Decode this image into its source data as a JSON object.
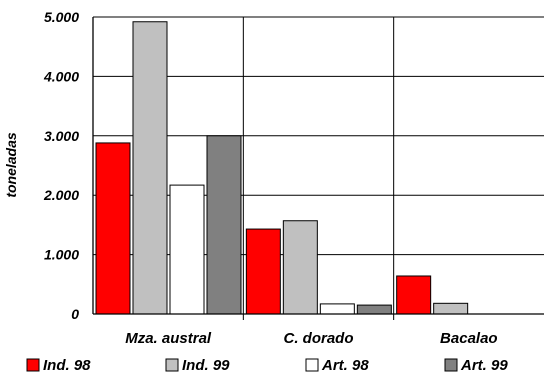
{
  "chart_data": {
    "type": "bar",
    "categories": [
      "Mza. austral",
      "C. dorado",
      "Bacalao"
    ],
    "series": [
      {
        "name": "Ind. 98",
        "color": "#ff0000",
        "values": [
          2880,
          1430,
          640
        ]
      },
      {
        "name": "Ind. 99",
        "color": "#c0c0c0",
        "values": [
          4920,
          1570,
          180
        ]
      },
      {
        "name": "Art. 98",
        "color": "#ffffff",
        "values": [
          2170,
          170,
          0
        ]
      },
      {
        "name": "Art. 99",
        "color": "#808080",
        "values": [
          3000,
          150,
          0
        ]
      }
    ],
    "ylabel": "toneladas",
    "ylim": [
      0,
      5000
    ],
    "yticks": [
      {
        "value": 0,
        "label": "0"
      },
      {
        "value": 1000,
        "label": "1.000"
      },
      {
        "value": 2000,
        "label": "2.000"
      },
      {
        "value": 3000,
        "label": "3.000"
      },
      {
        "value": 4000,
        "label": "4.000"
      },
      {
        "value": 5000,
        "label": "5.000"
      }
    ],
    "grid": {
      "horizontal": true,
      "category_dividers": true
    },
    "legend_position": "bottom"
  }
}
